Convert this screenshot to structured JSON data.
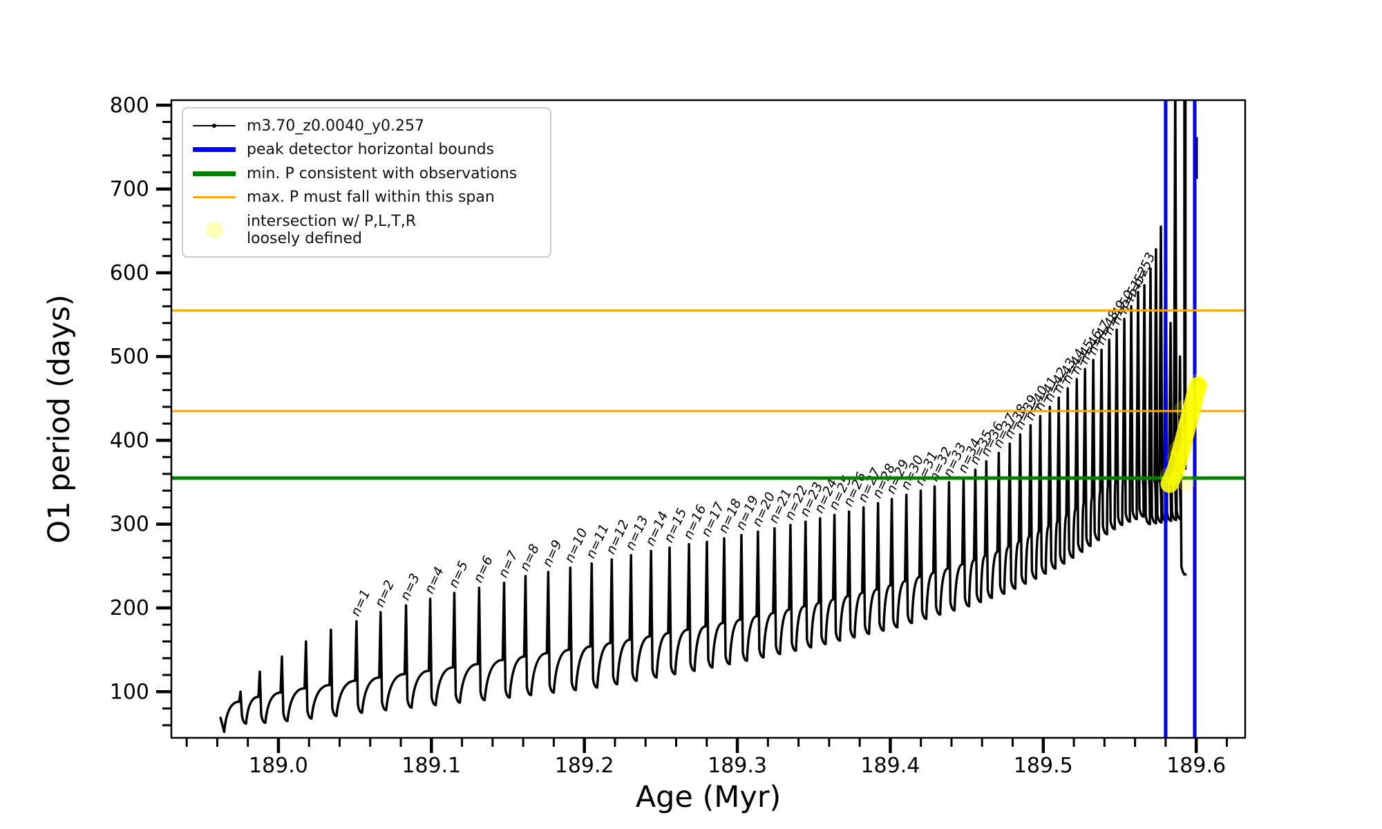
{
  "figure": {
    "background": "#ffffff",
    "title": ""
  },
  "legend": {
    "items": [
      {
        "id": "series",
        "swatch": "line-dot",
        "color": "#000000",
        "thickness": 2,
        "label": "m3.70_z0.0040_y0.257"
      },
      {
        "id": "peak-bounds",
        "swatch": "line",
        "color": "#0000ff",
        "thickness": 7,
        "label": "peak detector horizontal bounds"
      },
      {
        "id": "min-p",
        "swatch": "line",
        "color": "#008000",
        "thickness": 7,
        "label": "min. P consistent with observations"
      },
      {
        "id": "max-p",
        "swatch": "line",
        "color": "#ffa500",
        "thickness": 3,
        "label": "max. P must fall within this span"
      },
      {
        "id": "intersection",
        "swatch": "circle",
        "color": "rgba(255,255,0,0.28)",
        "label": "intersection w/ P,L,T,R\nloosely defined"
      }
    ]
  },
  "chart_data": {
    "type": "line",
    "title": "",
    "xlabel": "Age (Myr)",
    "ylabel": "O1 period (days)",
    "series_name": "m3.70_z0.0040_y0.257",
    "series_color": "#000000",
    "xlim": [
      188.93,
      189.632
    ],
    "ylim": [
      45,
      806
    ],
    "grid": false,
    "legend_position": "upper left",
    "xticks": {
      "values": [
        189.0,
        189.1,
        189.2,
        189.3,
        189.4,
        189.5,
        189.6
      ],
      "labels": [
        "189.0",
        "189.1",
        "189.2",
        "189.3",
        "189.4",
        "189.5",
        "189.6"
      ],
      "minor_step": 0.02
    },
    "yticks": {
      "values": [
        100,
        200,
        300,
        400,
        500,
        600,
        700,
        800
      ],
      "labels": [
        "100",
        "200",
        "300",
        "400",
        "500",
        "600",
        "700",
        "800"
      ],
      "minor_step": 20
    },
    "hlines": [
      {
        "id": "min-P-consistent",
        "value": 355,
        "color": "#008000",
        "width": 5
      },
      {
        "id": "max-P-upper",
        "value": 555,
        "color": "#ffa500",
        "width": 3
      },
      {
        "id": "max-P-lower",
        "value": 435,
        "color": "#ffa500",
        "width": 3
      }
    ],
    "vlines": [
      {
        "id": "peak-bound-left",
        "value": 189.58,
        "color": "#0000ff",
        "width": 5
      },
      {
        "id": "peak-bound-right",
        "value": 189.599,
        "color": "#0000ff",
        "width": 5
      }
    ],
    "curve_start": {
      "age": 188.962,
      "value": 70,
      "dip_age": 188.9645,
      "dip_value": 52
    },
    "curve_end": {
      "age": 189.5915,
      "value": 240
    },
    "teeth_note": "each tooth: [age_of_spike, peak, shoulder_before_spike, valley_after_spike, label]",
    "teeth": [
      [
        188.9752,
        100,
        88,
        62,
        ""
      ],
      [
        188.9878,
        124,
        94,
        63,
        ""
      ],
      [
        189.0023,
        142,
        99,
        65,
        ""
      ],
      [
        189.018,
        160,
        104,
        68,
        ""
      ],
      [
        189.0343,
        174,
        108,
        71,
        ""
      ],
      [
        189.051,
        184,
        113,
        75,
        "n=1"
      ],
      [
        189.0668,
        195,
        117,
        78,
        "n=2"
      ],
      [
        189.0834,
        203,
        121,
        81,
        "n=3"
      ],
      [
        189.0992,
        211,
        125,
        84,
        "n=4"
      ],
      [
        189.115,
        218,
        129,
        87,
        "n=5"
      ],
      [
        189.1312,
        224,
        133,
        90,
        "n=6"
      ],
      [
        189.1475,
        230,
        138,
        93,
        "n=7"
      ],
      [
        189.1615,
        238,
        142,
        96,
        "n=8"
      ],
      [
        189.1764,
        243,
        146,
        99,
        "n=9"
      ],
      [
        189.1908,
        248,
        150,
        102,
        "n=10"
      ],
      [
        189.2048,
        253,
        154,
        105,
        "n=11"
      ],
      [
        189.2179,
        258,
        158,
        109,
        "n=12"
      ],
      [
        189.2305,
        263,
        162,
        113,
        "n=13"
      ],
      [
        189.2436,
        268,
        166,
        117,
        "n=14"
      ],
      [
        189.2557,
        272,
        170,
        121,
        "n=15"
      ],
      [
        189.2684,
        276,
        174,
        125,
        "n=16"
      ],
      [
        189.2801,
        279,
        178,
        129,
        "n=17"
      ],
      [
        189.2914,
        283,
        182,
        133,
        "n=18"
      ],
      [
        189.3027,
        287,
        186,
        137,
        "n=19"
      ],
      [
        189.3135,
        291,
        190,
        141,
        "n=20"
      ],
      [
        189.3243,
        295,
        194,
        145,
        "n=21"
      ],
      [
        189.3347,
        299,
        198,
        149,
        "n=22"
      ],
      [
        189.3446,
        303,
        202,
        153,
        "n=23"
      ],
      [
        189.3541,
        307,
        206,
        157,
        "n=24"
      ],
      [
        189.3635,
        311,
        210,
        161,
        "n=25"
      ],
      [
        189.373,
        315,
        214,
        165,
        "n=26"
      ],
      [
        189.3825,
        320,
        218,
        169,
        "n=27"
      ],
      [
        189.392,
        325,
        222,
        173,
        "n=28"
      ],
      [
        189.401,
        330,
        227,
        177,
        "n=29"
      ],
      [
        189.4105,
        335,
        232,
        182,
        "n=30"
      ],
      [
        189.4199,
        340,
        237,
        187,
        "n=31"
      ],
      [
        189.429,
        345,
        242,
        192,
        "n=32"
      ],
      [
        189.4384,
        350,
        247,
        197,
        "n=33"
      ],
      [
        189.4479,
        355,
        252,
        202,
        "n=34"
      ],
      [
        189.4556,
        365,
        257,
        207,
        "n=35"
      ],
      [
        189.4628,
        375,
        262,
        212,
        "n=36"
      ],
      [
        189.4709,
        385,
        267,
        217,
        "n=37"
      ],
      [
        189.4781,
        396,
        273,
        223,
        "n=38"
      ],
      [
        189.4849,
        407,
        279,
        229,
        "n=39"
      ],
      [
        189.4917,
        418,
        285,
        235,
        "n=40"
      ],
      [
        189.498,
        429,
        291,
        241,
        "n=41"
      ],
      [
        189.5043,
        440,
        297,
        247,
        "n=42"
      ],
      [
        189.5101,
        451,
        303,
        253,
        "n=43"
      ],
      [
        189.516,
        462,
        310,
        260,
        "n=44"
      ],
      [
        189.5219,
        473,
        317,
        267,
        "n=45"
      ],
      [
        189.5273,
        485,
        324,
        274,
        "n=46"
      ],
      [
        189.5327,
        496,
        331,
        281,
        "n=47"
      ],
      [
        189.5381,
        508,
        338,
        288,
        "n=48"
      ],
      [
        189.5431,
        520,
        344,
        294,
        "n=49"
      ],
      [
        189.548,
        532,
        348,
        299,
        "n=50"
      ],
      [
        189.553,
        545,
        351,
        303,
        "n=51"
      ],
      [
        189.5575,
        560,
        353,
        306,
        "n=52"
      ],
      [
        189.562,
        577,
        355,
        309,
        "n=53"
      ],
      [
        189.5661,
        585,
        350,
        300,
        ""
      ],
      [
        189.5701,
        605,
        351,
        301,
        ""
      ],
      [
        189.5737,
        628,
        351,
        302,
        ""
      ],
      [
        189.5769,
        655,
        352,
        303,
        ""
      ],
      [
        189.58,
        690,
        352,
        304,
        ""
      ],
      [
        189.5832,
        540,
        353,
        305,
        ""
      ],
      [
        189.5863,
        830,
        354,
        306,
        ""
      ],
      [
        189.5894,
        500,
        355,
        240,
        ""
      ]
    ],
    "extra_segments": [
      {
        "age": 189.5926,
        "from": 365,
        "to": 830,
        "width": 5,
        "color": "#000000"
      },
      {
        "age": 189.5995,
        "from": 712,
        "to": 762,
        "width": 7,
        "color": "#000000"
      }
    ],
    "yellow_track": {
      "color": "#ffff00",
      "main_width": 26,
      "points": [
        [
          189.5825,
          348
        ],
        [
          189.584,
          354
        ],
        [
          189.586,
          362
        ],
        [
          189.588,
          374
        ],
        [
          189.59,
          388
        ],
        [
          189.592,
          402
        ],
        [
          189.594,
          416
        ],
        [
          189.596,
          430
        ],
        [
          189.598,
          444
        ],
        [
          189.5995,
          456
        ],
        [
          189.6005,
          462
        ],
        [
          189.6012,
          465
        ]
      ],
      "faint_circles": [
        [
          189.5817,
          358
        ],
        [
          189.5862,
          379
        ],
        [
          189.5876,
          390
        ],
        [
          189.5912,
          438
        ],
        [
          189.593,
          420
        ],
        [
          189.5934,
          349
        ],
        [
          189.6005,
          470
        ],
        [
          189.599,
          452
        ]
      ],
      "faint_radius": 12
    },
    "spike_label_style": {
      "font_size": 19,
      "italic": true,
      "rotation_deg": -65
    }
  }
}
